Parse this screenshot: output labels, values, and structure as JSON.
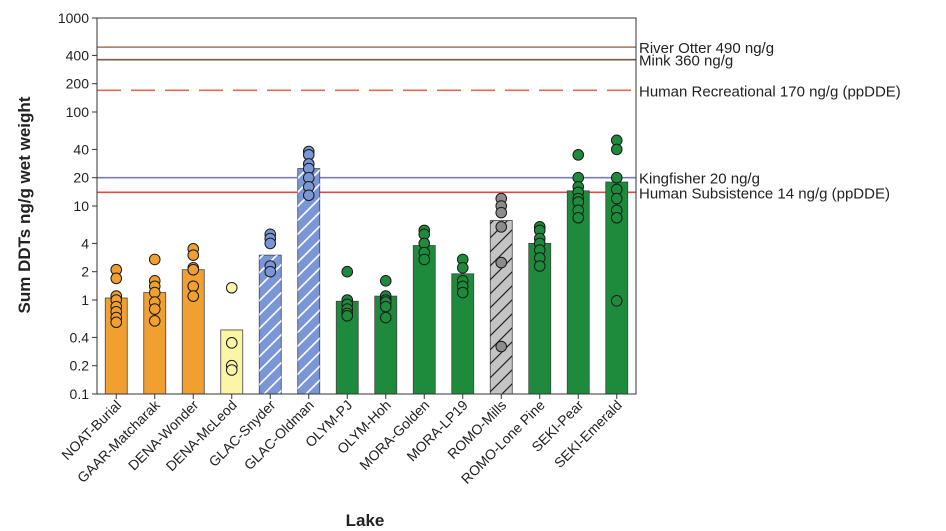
{
  "chart_data": {
    "type": "bar",
    "title": "",
    "xlabel": "Lake",
    "ylabel": "Sum DDTs ng/g wet weight",
    "yscale": "log",
    "ylim": [
      0.1,
      1000
    ],
    "yticks": [
      {
        "value": 0.1,
        "label": "0.1"
      },
      {
        "value": 0.2,
        "label": "0.2"
      },
      {
        "value": 0.4,
        "label": "0.4"
      },
      {
        "value": 1,
        "label": "1"
      },
      {
        "value": 2,
        "label": "2"
      },
      {
        "value": 4,
        "label": "4"
      },
      {
        "value": 10,
        "label": "10"
      },
      {
        "value": 20,
        "label": "20"
      },
      {
        "value": 40,
        "label": "40"
      },
      {
        "value": 100,
        "label": "100"
      },
      {
        "value": 200,
        "label": "200"
      },
      {
        "value": 400,
        "label": "400"
      },
      {
        "value": 1000,
        "label": "1000"
      }
    ],
    "grid": false,
    "legend": "none",
    "categories": [
      "NOAT-Burial",
      "GAAR-Matcharak",
      "DENA-Wonder",
      "DENA-McLeod",
      "GLAC-Snyder",
      "GLAC-Oldman",
      "OLYM-PJ",
      "OLYM-Hoh",
      "MORA-Golden",
      "MORA-LP19",
      "ROMO-Mills",
      "ROMO-Lone Pine",
      "SEKI-Pear",
      "SEKI-Emerald"
    ],
    "values": [
      1.05,
      1.2,
      2.1,
      0.48,
      3.0,
      25,
      0.97,
      1.1,
      3.8,
      1.9,
      7.0,
      4.0,
      14.5,
      18
    ],
    "bar_colors": [
      "#f0a030",
      "#f0a030",
      "#f0a030",
      "#fbf5a6",
      "#7b96d4",
      "#7b96d4",
      "#1e8a3c",
      "#1e8a3c",
      "#1e8a3c",
      "#1e8a3c",
      "#c4c4c4",
      "#1e8a3c",
      "#1e8a3c",
      "#1e8a3c"
    ],
    "point_colors": [
      "#f0a030",
      "#f0a030",
      "#f0a030",
      "#fbf5a6",
      "#7b96d4",
      "#7b96d4",
      "#1e8a3c",
      "#1e8a3c",
      "#1e8a3c",
      "#1e8a3c",
      "#8c8c8c",
      "#1e8a3c",
      "#1e8a3c",
      "#1e8a3c"
    ],
    "bar_hatch": [
      "none",
      "none",
      "none",
      "none",
      "diagonal-white",
      "diagonal-white",
      "none",
      "none",
      "none",
      "none",
      "diagonal-black",
      "none",
      "none",
      "none"
    ],
    "points": [
      [
        2.1,
        1.7,
        1.1,
        1.0,
        0.85,
        0.75,
        0.65,
        0.58
      ],
      [
        2.7,
        1.6,
        1.4,
        1.2,
        0.95,
        0.8,
        0.6
      ],
      [
        3.5,
        3.0,
        2.2,
        2.1,
        1.4,
        1.1
      ],
      [
        1.35,
        0.35,
        0.2,
        0.18
      ],
      [
        5.0,
        4.5,
        4.0,
        2.3,
        2.0
      ],
      [
        38,
        35,
        28,
        25,
        20,
        16,
        13
      ],
      [
        2.0,
        1.0,
        0.9,
        0.8,
        0.72,
        0.68
      ],
      [
        1.6,
        1.1,
        1.0,
        0.95,
        0.85,
        0.65
      ],
      [
        5.5,
        5.0,
        4.0,
        3.2,
        2.7
      ],
      [
        2.7,
        2.2,
        1.6,
        1.4,
        1.2
      ],
      [
        12,
        10,
        8.5,
        6.0,
        2.5,
        0.32
      ],
      [
        6.0,
        5.5,
        4.5,
        4.0,
        3.4,
        2.8,
        2.3
      ],
      [
        35,
        20,
        16,
        14,
        12,
        11,
        9,
        7.5
      ],
      [
        50,
        40,
        20,
        15,
        12,
        9,
        7.5,
        0.98
      ]
    ],
    "annotations": [
      {
        "label": "River Otter 490 ng/g",
        "value": 490,
        "color": "#a0745c",
        "style": "solid"
      },
      {
        "label": "Mink 360 ng/g",
        "value": 360,
        "color": "#7a5a48",
        "style": "solid"
      },
      {
        "label": "Human Recreational 170 ng/g (ppDDE)",
        "value": 170,
        "color": "#e8655a",
        "style": "dashed"
      },
      {
        "label": "Kingfisher 20 ng/g",
        "value": 20,
        "color": "#7c7ab8",
        "style": "solid"
      },
      {
        "label": "Human Subsistence 14 ng/g (ppDDE)",
        "value": 14,
        "color": "#e04848",
        "style": "solid"
      }
    ]
  }
}
